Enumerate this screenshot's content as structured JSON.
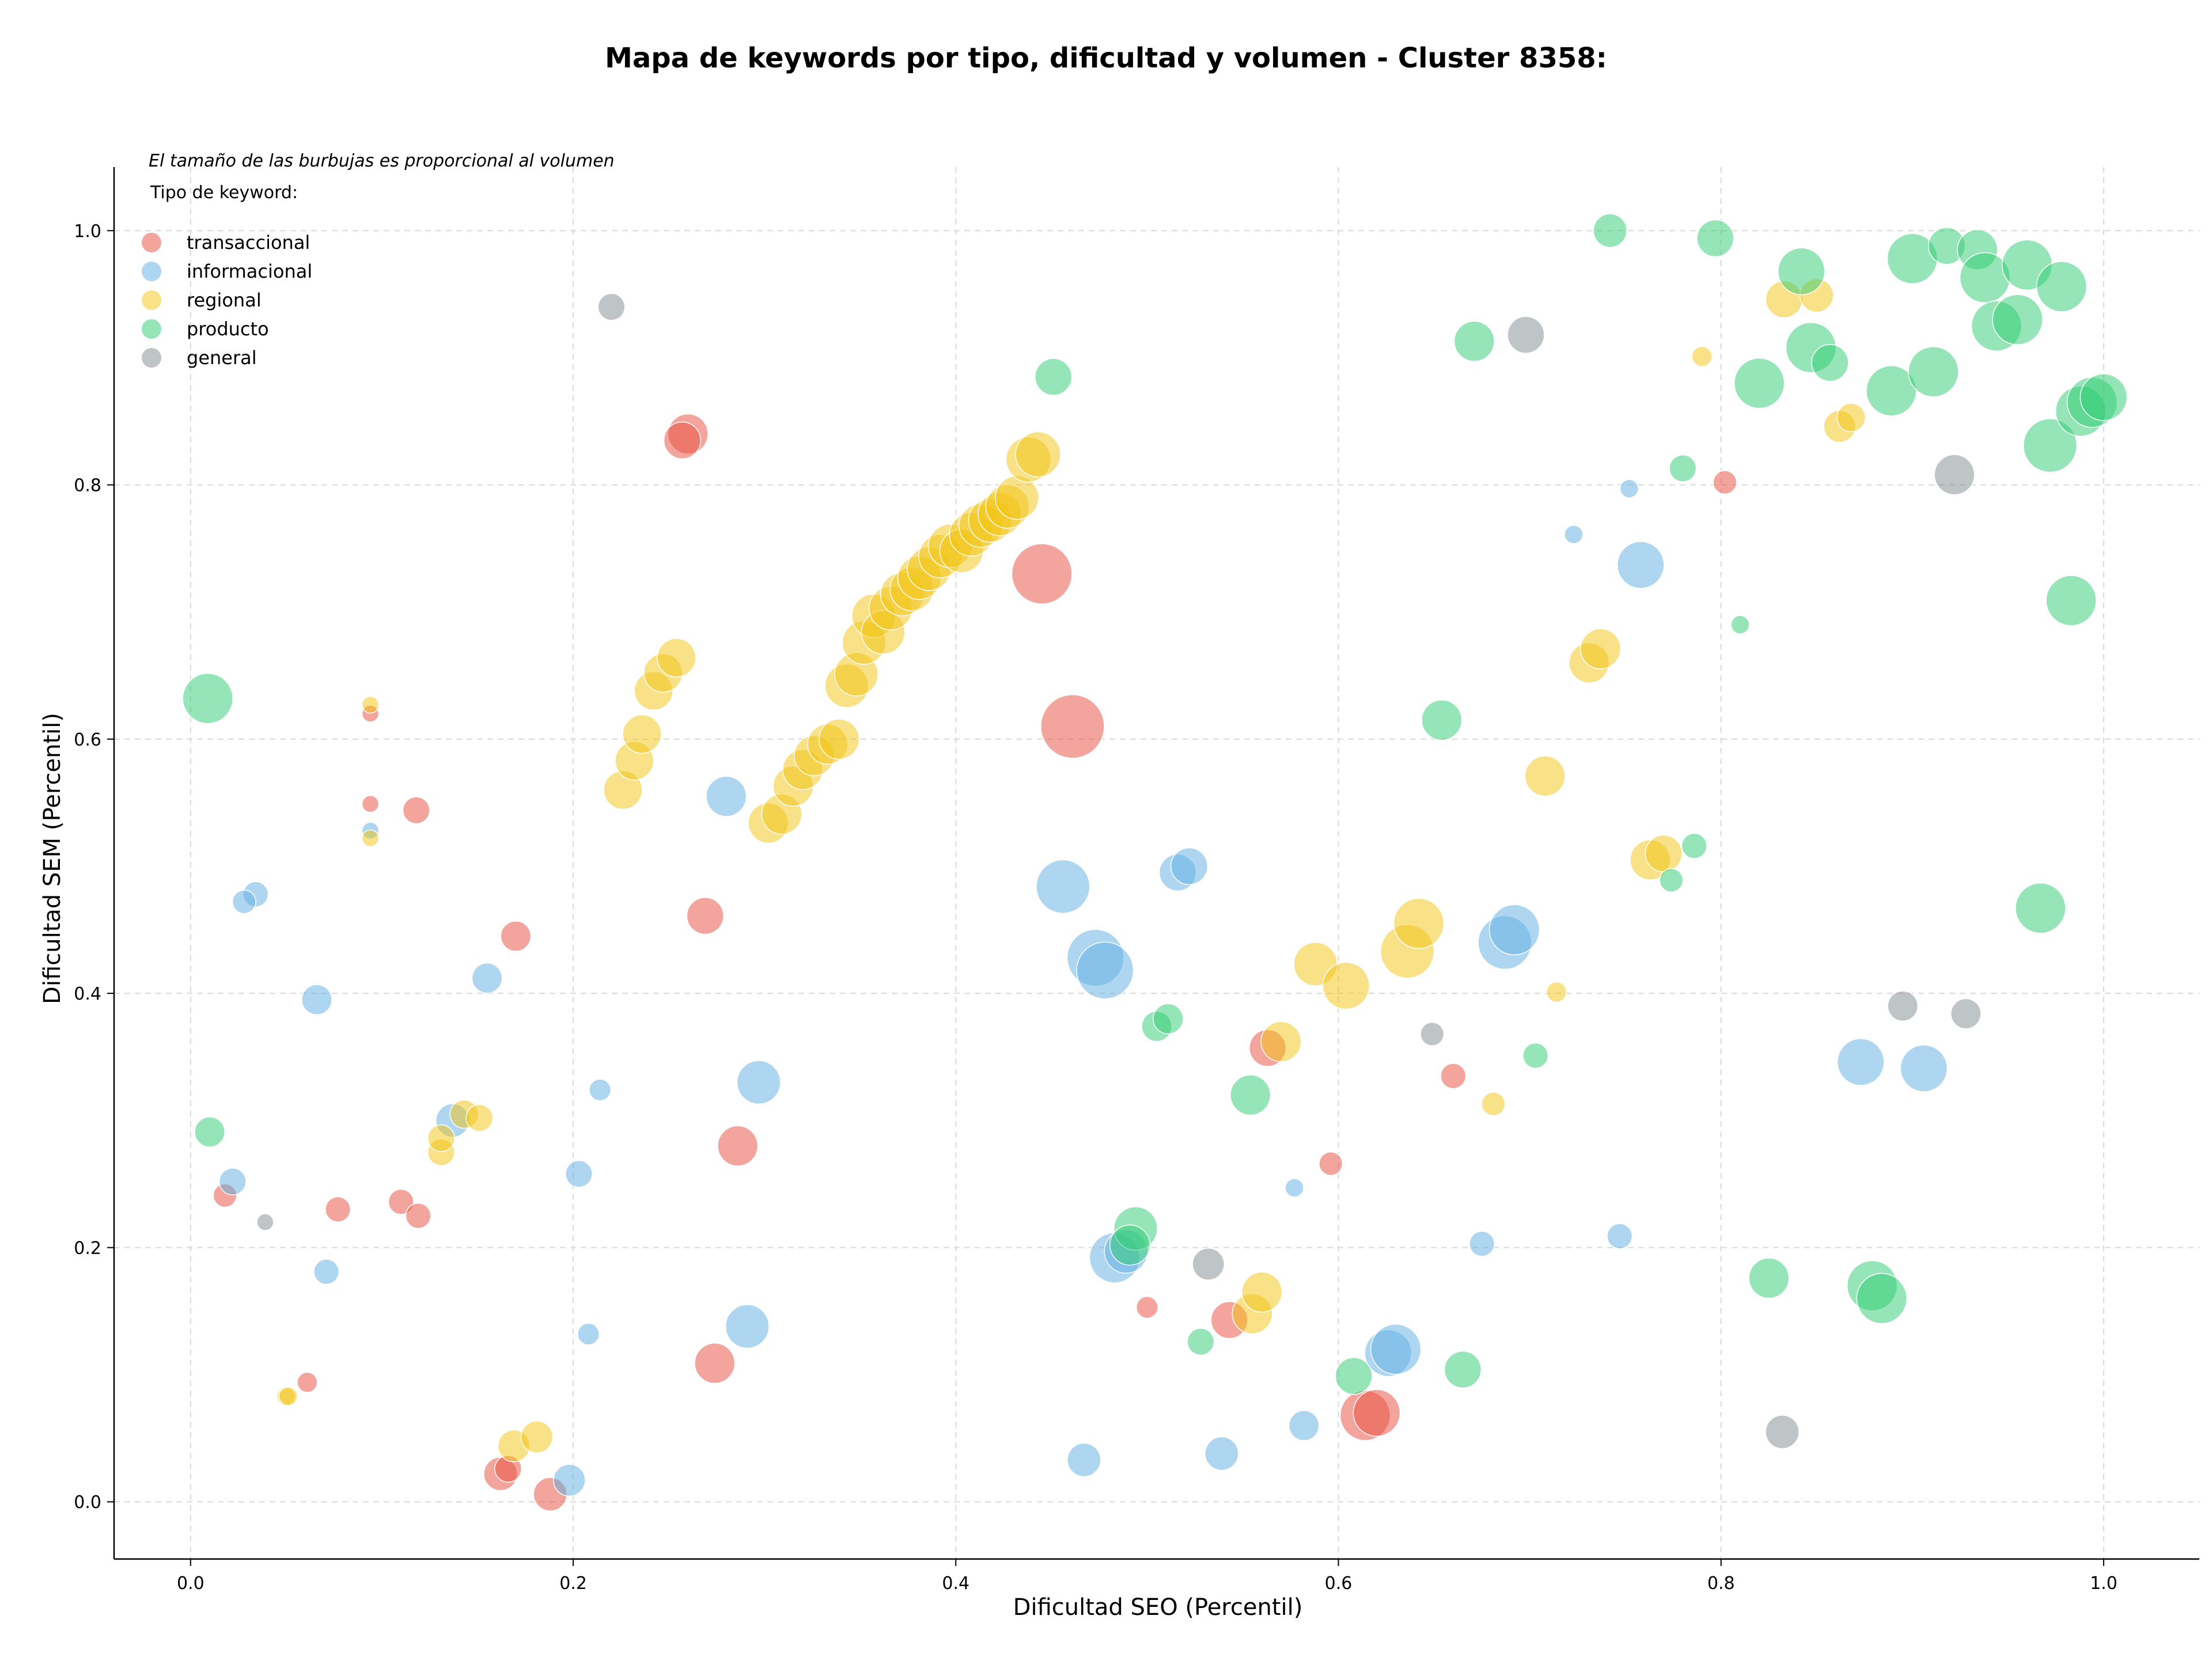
{
  "chart_data": {
    "type": "scatter",
    "title": "Mapa de keywords por tipo, dificultad y volumen - Cluster 8358:",
    "xlabel": "Dificultad SEO (Percentil)",
    "ylabel": "Dificultad SEM (Percentil)",
    "xlim": [
      -0.04,
      1.05
    ],
    "ylim": [
      -0.045,
      1.05
    ],
    "x_ticks": [
      "0.0",
      "0.2",
      "0.4",
      "0.6",
      "0.8",
      "1.0"
    ],
    "y_ticks": [
      "0.0",
      "0.2",
      "0.4",
      "0.6",
      "0.8",
      "1.0"
    ],
    "grid": true,
    "note": "El tamaño de las burbujas es proporcional al volumen",
    "legend_title": "Tipo de keyword:",
    "legend_position": "top-left",
    "series": [
      {
        "name": "transaccional",
        "color": "#e74c3c",
        "points": [
          [
            0.26,
            0.84,
            24
          ],
          [
            0.257,
            0.835,
            22
          ],
          [
            0.445,
            0.73,
            36
          ],
          [
            0.461,
            0.61,
            38
          ],
          [
            0.094,
            0.62,
            10
          ],
          [
            0.094,
            0.549,
            10
          ],
          [
            0.118,
            0.544,
            16
          ],
          [
            0.17,
            0.445,
            18
          ],
          [
            0.269,
            0.461,
            22
          ],
          [
            0.286,
            0.28,
            24
          ],
          [
            0.018,
            0.241,
            14
          ],
          [
            0.077,
            0.23,
            15
          ],
          [
            0.11,
            0.236,
            15
          ],
          [
            0.119,
            0.225,
            15
          ],
          [
            0.061,
            0.094,
            12
          ],
          [
            0.274,
            0.109,
            24
          ],
          [
            0.162,
            0.022,
            20
          ],
          [
            0.166,
            0.026,
            16
          ],
          [
            0.188,
            0.006,
            20
          ],
          [
            0.5,
            0.153,
            13
          ],
          [
            0.543,
            0.143,
            22
          ],
          [
            0.563,
            0.357,
            22
          ],
          [
            0.596,
            0.266,
            14
          ],
          [
            0.614,
            0.068,
            30
          ],
          [
            0.62,
            0.07,
            28
          ],
          [
            0.66,
            0.335,
            15
          ],
          [
            0.802,
            0.802,
            14
          ]
        ]
      },
      {
        "name": "informacional",
        "color": "#5dade2",
        "points": [
          [
            0.094,
            0.528,
            10
          ],
          [
            0.034,
            0.478,
            15
          ],
          [
            0.028,
            0.472,
            14
          ],
          [
            0.066,
            0.395,
            18
          ],
          [
            0.155,
            0.412,
            18
          ],
          [
            0.28,
            0.555,
            24
          ],
          [
            0.297,
            0.33,
            26
          ],
          [
            0.214,
            0.324,
            13
          ],
          [
            0.137,
            0.3,
            20
          ],
          [
            0.203,
            0.258,
            16
          ],
          [
            0.022,
            0.252,
            16
          ],
          [
            0.071,
            0.181,
            15
          ],
          [
            0.208,
            0.132,
            13
          ],
          [
            0.291,
            0.138,
            26
          ],
          [
            0.198,
            0.017,
            19
          ],
          [
            0.456,
            0.484,
            32
          ],
          [
            0.473,
            0.428,
            34
          ],
          [
            0.478,
            0.418,
            34
          ],
          [
            0.483,
            0.192,
            30
          ],
          [
            0.489,
            0.197,
            26
          ],
          [
            0.516,
            0.495,
            22
          ],
          [
            0.522,
            0.5,
            22
          ],
          [
            0.467,
            0.033,
            20
          ],
          [
            0.539,
            0.038,
            20
          ],
          [
            0.577,
            0.247,
            11
          ],
          [
            0.582,
            0.06,
            18
          ],
          [
            0.626,
            0.117,
            28
          ],
          [
            0.63,
            0.12,
            30
          ],
          [
            0.687,
            0.44,
            32
          ],
          [
            0.692,
            0.45,
            30
          ],
          [
            0.675,
            0.203,
            15
          ],
          [
            0.723,
            0.761,
            11
          ],
          [
            0.752,
            0.797,
            11
          ],
          [
            0.758,
            0.737,
            28
          ],
          [
            0.747,
            0.209,
            15
          ],
          [
            0.873,
            0.346,
            28
          ],
          [
            0.906,
            0.341,
            28
          ]
        ]
      },
      {
        "name": "regional",
        "color": "#f1c40f",
        "points": [
          [
            0.094,
            0.627,
            10
          ],
          [
            0.094,
            0.522,
            10
          ],
          [
            0.05,
            0.083,
            11
          ],
          [
            0.051,
            0.083,
            11
          ],
          [
            0.131,
            0.275,
            16
          ],
          [
            0.131,
            0.286,
            16
          ],
          [
            0.143,
            0.305,
            17
          ],
          [
            0.151,
            0.302,
            16
          ],
          [
            0.169,
            0.044,
            19
          ],
          [
            0.181,
            0.051,
            19
          ],
          [
            0.226,
            0.56,
            23
          ],
          [
            0.232,
            0.583,
            23
          ],
          [
            0.236,
            0.604,
            23
          ],
          [
            0.242,
            0.638,
            23
          ],
          [
            0.247,
            0.652,
            23
          ],
          [
            0.254,
            0.664,
            23
          ],
          [
            0.302,
            0.534,
            24
          ],
          [
            0.309,
            0.541,
            24
          ],
          [
            0.315,
            0.563,
            24
          ],
          [
            0.32,
            0.576,
            24
          ],
          [
            0.326,
            0.587,
            24
          ],
          [
            0.333,
            0.596,
            24
          ],
          [
            0.339,
            0.6,
            24
          ],
          [
            0.343,
            0.642,
            26
          ],
          [
            0.348,
            0.651,
            26
          ],
          [
            0.352,
            0.676,
            26
          ],
          [
            0.357,
            0.697,
            26
          ],
          [
            0.362,
            0.684,
            26
          ],
          [
            0.366,
            0.703,
            26
          ],
          [
            0.372,
            0.714,
            26
          ],
          [
            0.377,
            0.718,
            26
          ],
          [
            0.381,
            0.727,
            26
          ],
          [
            0.386,
            0.734,
            26
          ],
          [
            0.392,
            0.744,
            26
          ],
          [
            0.397,
            0.752,
            26
          ],
          [
            0.403,
            0.748,
            26
          ],
          [
            0.408,
            0.761,
            26
          ],
          [
            0.413,
            0.768,
            26
          ],
          [
            0.418,
            0.772,
            26
          ],
          [
            0.423,
            0.777,
            26
          ],
          [
            0.427,
            0.783,
            26
          ],
          [
            0.432,
            0.79,
            26
          ],
          [
            0.438,
            0.82,
            27
          ],
          [
            0.443,
            0.824,
            27
          ],
          [
            0.555,
            0.148,
            24
          ],
          [
            0.56,
            0.165,
            24
          ],
          [
            0.57,
            0.362,
            24
          ],
          [
            0.588,
            0.423,
            26
          ],
          [
            0.604,
            0.406,
            28
          ],
          [
            0.636,
            0.433,
            32
          ],
          [
            0.642,
            0.455,
            30
          ],
          [
            0.681,
            0.313,
            14
          ],
          [
            0.714,
            0.401,
            12
          ],
          [
            0.708,
            0.571,
            24
          ],
          [
            0.731,
            0.66,
            24
          ],
          [
            0.737,
            0.671,
            24
          ],
          [
            0.763,
            0.505,
            24
          ],
          [
            0.77,
            0.51,
            22
          ],
          [
            0.79,
            0.901,
            12
          ],
          [
            0.833,
            0.946,
            22
          ],
          [
            0.85,
            0.949,
            20
          ],
          [
            0.862,
            0.846,
            19
          ],
          [
            0.868,
            0.853,
            17
          ]
        ]
      },
      {
        "name": "producto",
        "color": "#2ecc71",
        "points": [
          [
            0.009,
            0.632,
            30
          ],
          [
            0.01,
            0.291,
            18
          ],
          [
            0.451,
            0.885,
            22
          ],
          [
            0.494,
            0.215,
            26
          ],
          [
            0.491,
            0.202,
            24
          ],
          [
            0.505,
            0.374,
            18
          ],
          [
            0.511,
            0.38,
            18
          ],
          [
            0.528,
            0.126,
            16
          ],
          [
            0.554,
            0.32,
            24
          ],
          [
            0.608,
            0.099,
            22
          ],
          [
            0.654,
            0.615,
            24
          ],
          [
            0.665,
            0.104,
            22
          ],
          [
            0.671,
            0.913,
            24
          ],
          [
            0.703,
            0.351,
            15
          ],
          [
            0.742,
            1.0,
            20
          ],
          [
            0.774,
            0.489,
            14
          ],
          [
            0.78,
            0.813,
            16
          ],
          [
            0.786,
            0.516,
            15
          ],
          [
            0.797,
            0.994,
            22
          ],
          [
            0.81,
            0.69,
            11
          ],
          [
            0.82,
            0.88,
            30
          ],
          [
            0.825,
            0.176,
            24
          ],
          [
            0.842,
            0.968,
            28
          ],
          [
            0.847,
            0.908,
            30
          ],
          [
            0.857,
            0.896,
            22
          ],
          [
            0.879,
            0.17,
            30
          ],
          [
            0.884,
            0.16,
            30
          ],
          [
            0.889,
            0.874,
            30
          ],
          [
            0.9,
            0.978,
            30
          ],
          [
            0.911,
            0.889,
            30
          ],
          [
            0.918,
            0.988,
            22
          ],
          [
            0.934,
            0.985,
            24
          ],
          [
            0.938,
            0.963,
            30
          ],
          [
            0.944,
            0.925,
            30
          ],
          [
            0.955,
            0.93,
            30
          ],
          [
            0.96,
            0.973,
            30
          ],
          [
            0.967,
            0.467,
            30
          ],
          [
            0.972,
            0.831,
            32
          ],
          [
            0.978,
            0.956,
            30
          ],
          [
            0.983,
            0.709,
            30
          ],
          [
            0.988,
            0.858,
            30
          ],
          [
            0.994,
            0.865,
            30
          ],
          [
            1.0,
            0.869,
            28
          ]
        ]
      },
      {
        "name": "general",
        "color": "#7f8c8d",
        "points": [
          [
            0.22,
            0.94,
            16
          ],
          [
            0.039,
            0.22,
            10
          ],
          [
            0.532,
            0.187,
            19
          ],
          [
            0.649,
            0.368,
            14
          ],
          [
            0.698,
            0.918,
            22
          ],
          [
            0.832,
            0.055,
            20
          ],
          [
            0.895,
            0.39,
            18
          ],
          [
            0.922,
            0.808,
            24
          ],
          [
            0.928,
            0.384,
            18
          ]
        ]
      }
    ]
  }
}
